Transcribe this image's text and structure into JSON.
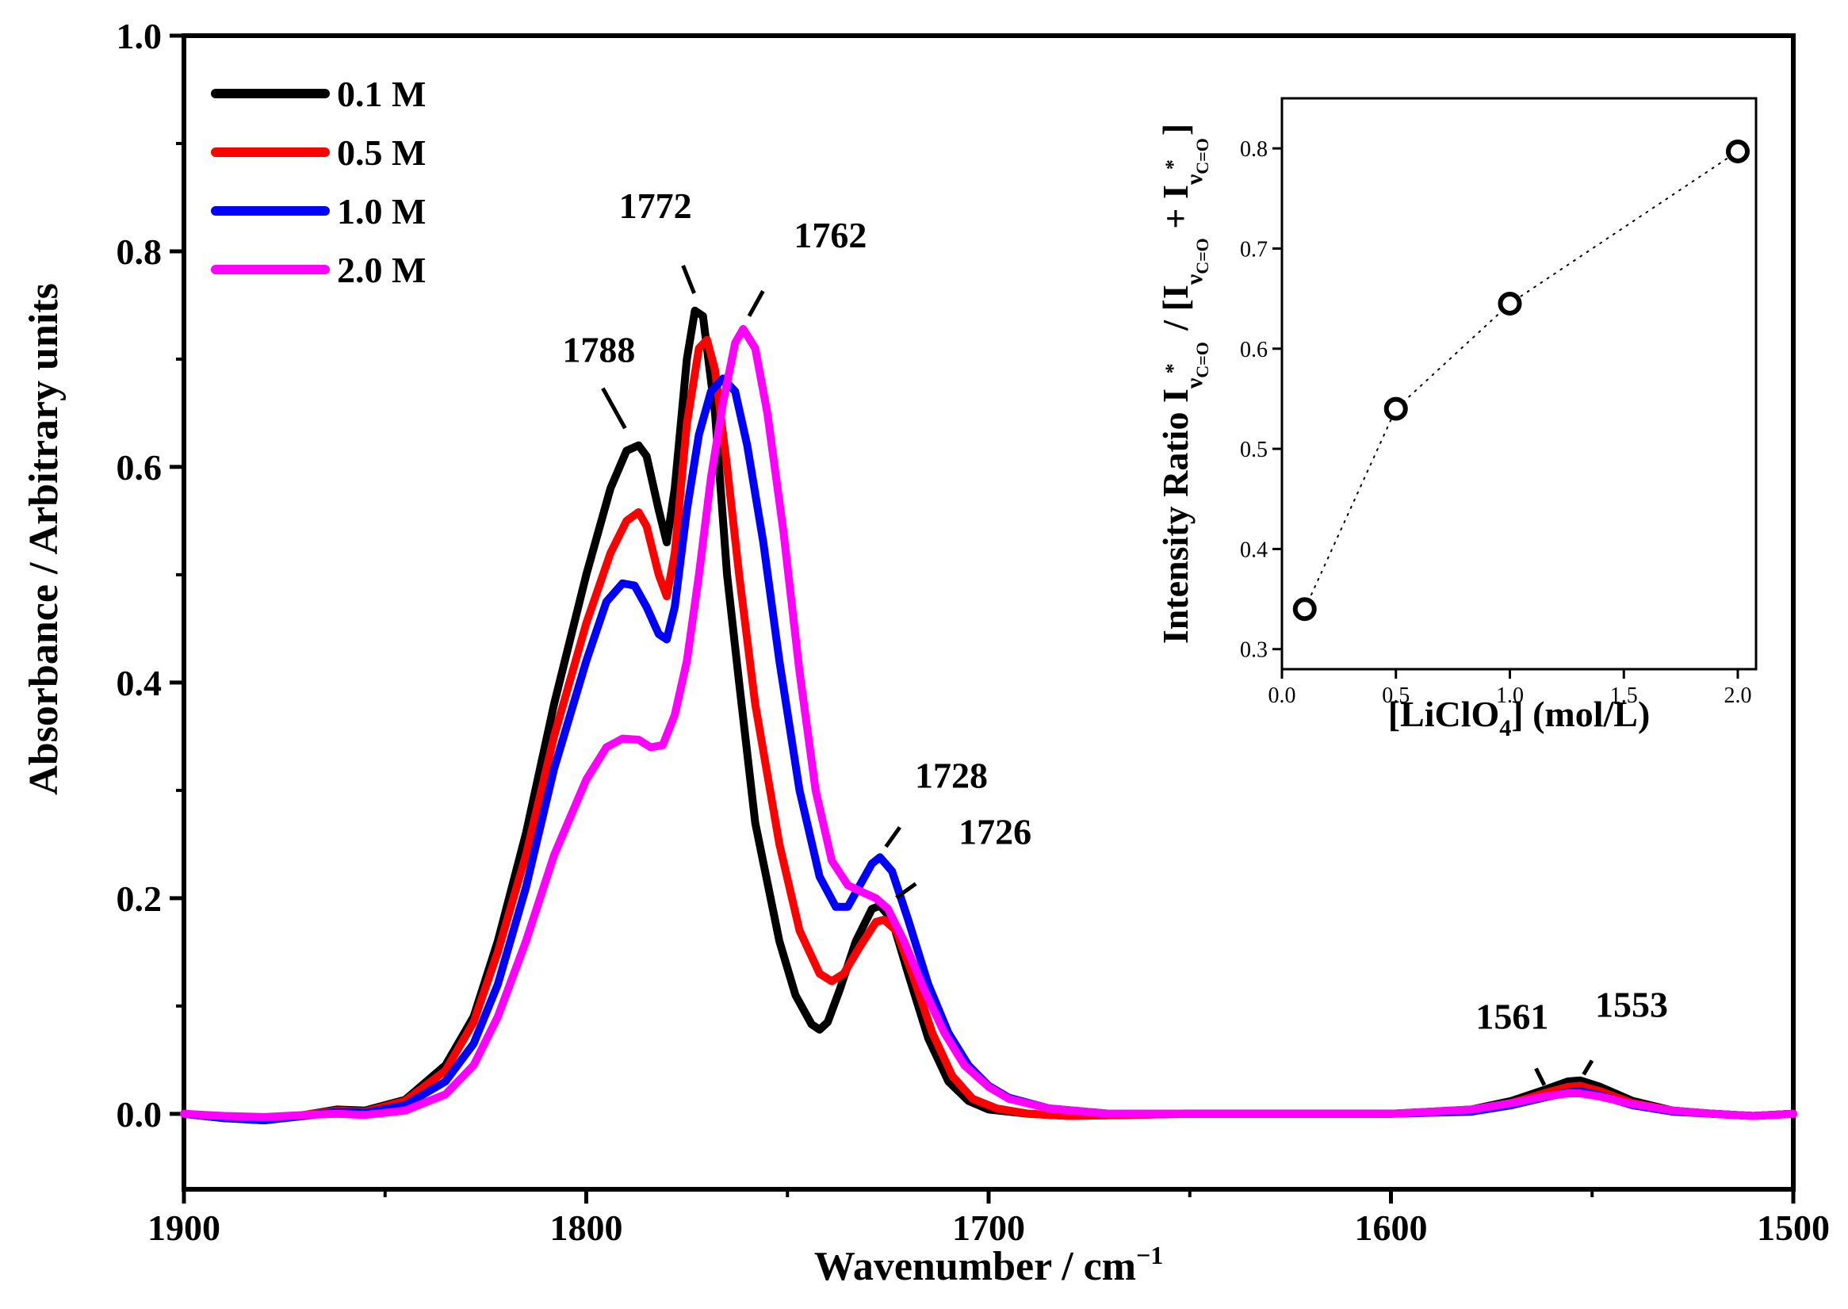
{
  "chart_data": [
    {
      "type": "line",
      "xlabel": "Wavenumber / cm",
      "xlabel_sup": "−1",
      "ylabel": "Absorbance / Arbitrary units",
      "xlim": [
        1900,
        1500
      ],
      "x_reversed": true,
      "ylim": [
        -0.07,
        1.0
      ],
      "x_ticks": [
        1900,
        1800,
        1700,
        1600,
        1500
      ],
      "x_tick_labels": [
        "1900",
        "1800",
        "1700",
        "1600",
        "1500"
      ],
      "y_ticks": [
        0.0,
        0.2,
        0.4,
        0.6,
        0.8,
        1.0
      ],
      "y_tick_labels": [
        "0.0",
        "0.2",
        "0.4",
        "0.6",
        "0.8",
        "1.0"
      ],
      "grid": false,
      "legend_position": "top-left",
      "series": [
        {
          "name": "0.1 M",
          "color": "#000000",
          "points": [
            [
              1900,
              0.0
            ],
            [
              1890,
              -0.004
            ],
            [
              1880,
              -0.006
            ],
            [
              1870,
              -0.001
            ],
            [
              1862,
              0.004
            ],
            [
              1855,
              0.003
            ],
            [
              1845,
              0.013
            ],
            [
              1835,
              0.045
            ],
            [
              1828,
              0.09
            ],
            [
              1822,
              0.16
            ],
            [
              1815,
              0.26
            ],
            [
              1808,
              0.38
            ],
            [
              1800,
              0.5
            ],
            [
              1794,
              0.58
            ],
            [
              1790,
              0.615
            ],
            [
              1787,
              0.62
            ],
            [
              1785,
              0.61
            ],
            [
              1782,
              0.56
            ],
            [
              1780,
              0.53
            ],
            [
              1778,
              0.58
            ],
            [
              1775,
              0.7
            ],
            [
              1773,
              0.745
            ],
            [
              1771,
              0.74
            ],
            [
              1768,
              0.65
            ],
            [
              1765,
              0.5
            ],
            [
              1762,
              0.4
            ],
            [
              1758,
              0.27
            ],
            [
              1752,
              0.16
            ],
            [
              1748,
              0.11
            ],
            [
              1744,
              0.083
            ],
            [
              1742,
              0.078
            ],
            [
              1740,
              0.085
            ],
            [
              1737,
              0.115
            ],
            [
              1733,
              0.16
            ],
            [
              1729,
              0.19
            ],
            [
              1727,
              0.193
            ],
            [
              1724,
              0.18
            ],
            [
              1720,
              0.13
            ],
            [
              1715,
              0.07
            ],
            [
              1710,
              0.03
            ],
            [
              1705,
              0.012
            ],
            [
              1700,
              0.004
            ],
            [
              1690,
              0.0
            ],
            [
              1680,
              -0.002
            ],
            [
              1650,
              0.0
            ],
            [
              1600,
              0.0
            ],
            [
              1580,
              0.004
            ],
            [
              1570,
              0.012
            ],
            [
              1562,
              0.022
            ],
            [
              1556,
              0.03
            ],
            [
              1553,
              0.031
            ],
            [
              1548,
              0.025
            ],
            [
              1540,
              0.012
            ],
            [
              1530,
              0.003
            ],
            [
              1520,
              0.0
            ],
            [
              1510,
              -0.002
            ],
            [
              1500,
              0.0
            ]
          ]
        },
        {
          "name": "0.5 M",
          "color": "#ff0000",
          "points": [
            [
              1900,
              0.0
            ],
            [
              1890,
              -0.003
            ],
            [
              1880,
              -0.005
            ],
            [
              1870,
              -0.001
            ],
            [
              1862,
              0.003
            ],
            [
              1855,
              0.002
            ],
            [
              1845,
              0.012
            ],
            [
              1835,
              0.04
            ],
            [
              1828,
              0.085
            ],
            [
              1822,
              0.15
            ],
            [
              1815,
              0.24
            ],
            [
              1808,
              0.35
            ],
            [
              1800,
              0.455
            ],
            [
              1794,
              0.52
            ],
            [
              1790,
              0.55
            ],
            [
              1787,
              0.558
            ],
            [
              1785,
              0.545
            ],
            [
              1782,
              0.5
            ],
            [
              1780,
              0.48
            ],
            [
              1778,
              0.52
            ],
            [
              1775,
              0.64
            ],
            [
              1772,
              0.71
            ],
            [
              1770,
              0.718
            ],
            [
              1768,
              0.69
            ],
            [
              1765,
              0.6
            ],
            [
              1762,
              0.5
            ],
            [
              1758,
              0.38
            ],
            [
              1752,
              0.25
            ],
            [
              1747,
              0.17
            ],
            [
              1742,
              0.13
            ],
            [
              1739,
              0.123
            ],
            [
              1736,
              0.13
            ],
            [
              1732,
              0.155
            ],
            [
              1728,
              0.178
            ],
            [
              1726,
              0.18
            ],
            [
              1723,
              0.17
            ],
            [
              1719,
              0.13
            ],
            [
              1714,
              0.075
            ],
            [
              1709,
              0.035
            ],
            [
              1704,
              0.014
            ],
            [
              1698,
              0.005
            ],
            [
              1690,
              0.0
            ],
            [
              1680,
              -0.002
            ],
            [
              1650,
              0.0
            ],
            [
              1600,
              0.0
            ],
            [
              1580,
              0.003
            ],
            [
              1570,
              0.01
            ],
            [
              1562,
              0.019
            ],
            [
              1556,
              0.025
            ],
            [
              1553,
              0.026
            ],
            [
              1548,
              0.021
            ],
            [
              1540,
              0.01
            ],
            [
              1530,
              0.003
            ],
            [
              1520,
              0.0
            ],
            [
              1510,
              -0.002
            ],
            [
              1500,
              0.0
            ]
          ]
        },
        {
          "name": "1.0 M",
          "color": "#0000ff",
          "points": [
            [
              1900,
              0.0
            ],
            [
              1890,
              -0.004
            ],
            [
              1880,
              -0.006
            ],
            [
              1870,
              -0.002
            ],
            [
              1862,
              0.002
            ],
            [
              1855,
              0.001
            ],
            [
              1845,
              0.008
            ],
            [
              1835,
              0.03
            ],
            [
              1828,
              0.065
            ],
            [
              1822,
              0.12
            ],
            [
              1815,
              0.21
            ],
            [
              1808,
              0.32
            ],
            [
              1800,
              0.42
            ],
            [
              1795,
              0.475
            ],
            [
              1791,
              0.492
            ],
            [
              1788,
              0.49
            ],
            [
              1785,
              0.47
            ],
            [
              1782,
              0.445
            ],
            [
              1780,
              0.44
            ],
            [
              1778,
              0.47
            ],
            [
              1775,
              0.56
            ],
            [
              1772,
              0.63
            ],
            [
              1769,
              0.67
            ],
            [
              1766,
              0.682
            ],
            [
              1763,
              0.67
            ],
            [
              1760,
              0.62
            ],
            [
              1756,
              0.53
            ],
            [
              1752,
              0.42
            ],
            [
              1747,
              0.3
            ],
            [
              1742,
              0.22
            ],
            [
              1738,
              0.192
            ],
            [
              1735,
              0.192
            ],
            [
              1732,
              0.212
            ],
            [
              1729,
              0.232
            ],
            [
              1727,
              0.238
            ],
            [
              1724,
              0.225
            ],
            [
              1720,
              0.18
            ],
            [
              1715,
              0.12
            ],
            [
              1710,
              0.075
            ],
            [
              1705,
              0.045
            ],
            [
              1700,
              0.026
            ],
            [
              1695,
              0.015
            ],
            [
              1685,
              0.005
            ],
            [
              1670,
              0.0
            ],
            [
              1650,
              0.0
            ],
            [
              1600,
              0.0
            ],
            [
              1580,
              0.002
            ],
            [
              1570,
              0.008
            ],
            [
              1562,
              0.015
            ],
            [
              1556,
              0.02
            ],
            [
              1553,
              0.021
            ],
            [
              1548,
              0.017
            ],
            [
              1540,
              0.008
            ],
            [
              1530,
              0.002
            ],
            [
              1520,
              0.0
            ],
            [
              1510,
              -0.002
            ],
            [
              1500,
              0.0
            ]
          ]
        },
        {
          "name": "2.0 M",
          "color": "#ff00ff",
          "points": [
            [
              1900,
              0.0
            ],
            [
              1890,
              -0.002
            ],
            [
              1880,
              -0.003
            ],
            [
              1870,
              -0.001
            ],
            [
              1862,
              0.0
            ],
            [
              1855,
              -0.001
            ],
            [
              1845,
              0.003
            ],
            [
              1835,
              0.018
            ],
            [
              1828,
              0.045
            ],
            [
              1822,
              0.09
            ],
            [
              1815,
              0.16
            ],
            [
              1808,
              0.24
            ],
            [
              1800,
              0.31
            ],
            [
              1795,
              0.34
            ],
            [
              1791,
              0.348
            ],
            [
              1787,
              0.347
            ],
            [
              1784,
              0.34
            ],
            [
              1781,
              0.342
            ],
            [
              1778,
              0.37
            ],
            [
              1775,
              0.42
            ],
            [
              1772,
              0.5
            ],
            [
              1769,
              0.59
            ],
            [
              1766,
              0.66
            ],
            [
              1763,
              0.715
            ],
            [
              1761,
              0.728
            ],
            [
              1758,
              0.71
            ],
            [
              1755,
              0.65
            ],
            [
              1751,
              0.54
            ],
            [
              1747,
              0.41
            ],
            [
              1743,
              0.3
            ],
            [
              1739,
              0.235
            ],
            [
              1735,
              0.212
            ],
            [
              1731,
              0.205
            ],
            [
              1728,
              0.2
            ],
            [
              1725,
              0.19
            ],
            [
              1721,
              0.16
            ],
            [
              1716,
              0.115
            ],
            [
              1711,
              0.075
            ],
            [
              1706,
              0.045
            ],
            [
              1700,
              0.025
            ],
            [
              1695,
              0.014
            ],
            [
              1685,
              0.005
            ],
            [
              1670,
              0.0
            ],
            [
              1650,
              0.0
            ],
            [
              1600,
              0.0
            ],
            [
              1580,
              0.004
            ],
            [
              1570,
              0.01
            ],
            [
              1562,
              0.016
            ],
            [
              1556,
              0.019
            ],
            [
              1553,
              0.019
            ],
            [
              1548,
              0.016
            ],
            [
              1540,
              0.009
            ],
            [
              1530,
              0.003
            ],
            [
              1520,
              0.0
            ],
            [
              1510,
              -0.002
            ],
            [
              1500,
              0.0
            ]
          ]
        }
      ],
      "annotations": [
        {
          "text": "1788",
          "peak": [
            1788,
            0.62
          ]
        },
        {
          "text": "1772",
          "peak": [
            1772,
            0.75
          ]
        },
        {
          "text": "1762",
          "peak": [
            1761,
            0.73
          ]
        },
        {
          "text": "1728",
          "peak": [
            1727,
            0.24
          ]
        },
        {
          "text": "1726",
          "peak": [
            1725,
            0.195
          ]
        },
        {
          "text": "1561",
          "peak": [
            1561,
            0.02
          ]
        },
        {
          "text": "1553",
          "peak": [
            1553,
            0.031
          ]
        }
      ]
    },
    {
      "type": "scatter",
      "xlabel": "[LiClO",
      "xlabel_sub": "4",
      "xlabel_unit": "]  (mol/L)",
      "ylabel_text": "Intensity Ratio I",
      "ylabel_symbol": "ν",
      "ylabel_sub": "C=O",
      "ylabel_star": "*",
      "ylabel_mid": " / [I",
      "ylabel_plus": " + I",
      "ylabel_end": "]",
      "xlim": [
        0.0,
        2.08
      ],
      "ylim": [
        0.28,
        0.85
      ],
      "x_ticks": [
        0.0,
        0.5,
        1.0,
        1.5,
        2.0
      ],
      "x_tick_labels": [
        "0.0",
        "0.5",
        "1.0",
        "1.5",
        "2.0"
      ],
      "y_ticks": [
        0.3,
        0.4,
        0.5,
        0.6,
        0.7,
        0.8
      ],
      "y_tick_labels": [
        "0.3",
        "0.4",
        "0.5",
        "0.6",
        "0.7",
        "0.8"
      ],
      "grid": false,
      "marker": "open-circle",
      "connector": "dotted",
      "x": [
        0.1,
        0.5,
        1.0,
        2.0
      ],
      "y": [
        0.34,
        0.54,
        0.645,
        0.797
      ]
    }
  ]
}
